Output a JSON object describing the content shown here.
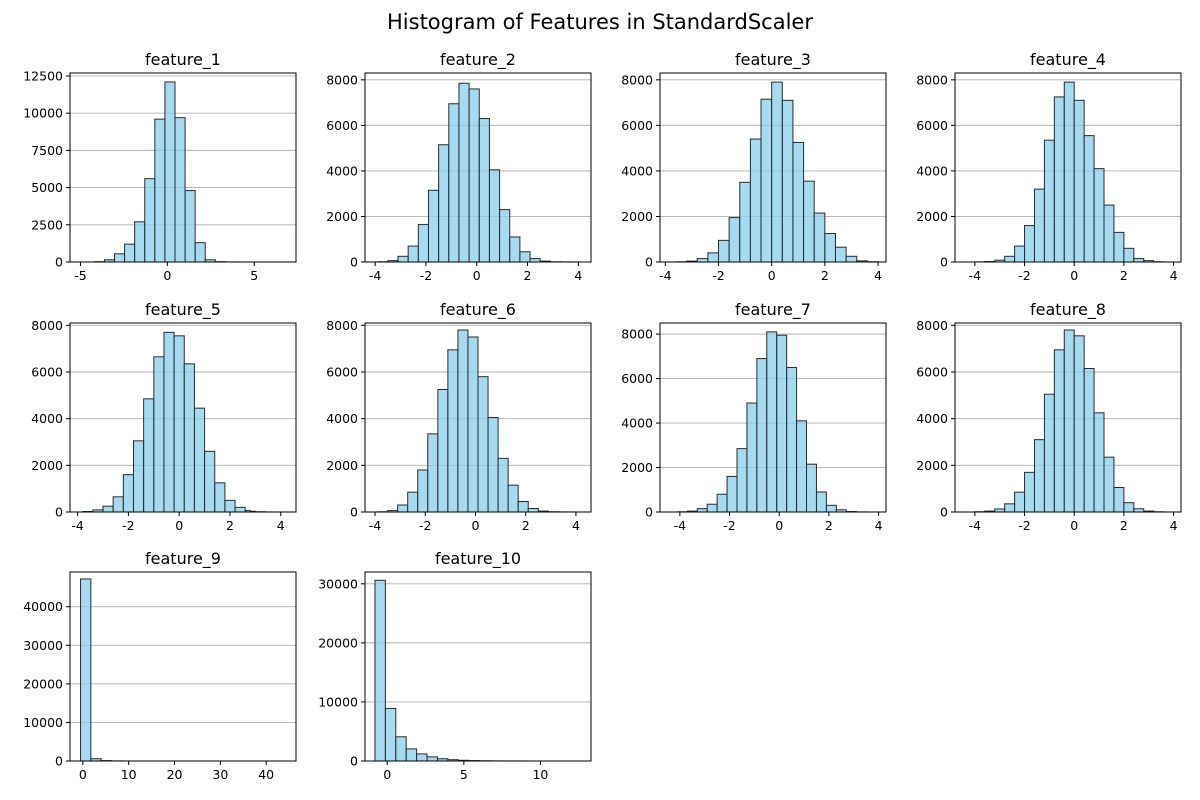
{
  "title": "Histogram of Features in StandardScaler",
  "style": {
    "bar_fill": "#87ceeb",
    "bar_edge": "#2b2b2b",
    "grid": "#b0b0b0"
  },
  "chart_data": [
    {
      "type": "bar",
      "title": "feature_1",
      "xlim": [
        -5.6,
        7.4
      ],
      "ylim": [
        0,
        12700
      ],
      "xticks": [
        -5,
        0,
        5
      ],
      "yticks": [
        0,
        2500,
        5000,
        7500,
        10000,
        12500
      ],
      "bin_edges": [
        -4.2,
        -3.62,
        -3.04,
        -2.46,
        -1.88,
        -1.3,
        -0.72,
        -0.14,
        0.44,
        1.02,
        1.6,
        2.18,
        2.76,
        3.34,
        3.92,
        4.5,
        5.08,
        5.66,
        6.24,
        6.82,
        7.4
      ],
      "counts": [
        20,
        150,
        550,
        1200,
        2700,
        5600,
        9600,
        12100,
        9700,
        4800,
        1300,
        150,
        20,
        5,
        2,
        1,
        1,
        0,
        0,
        1
      ],
      "grid": "y"
    },
    {
      "type": "bar",
      "title": "feature_2",
      "xlim": [
        -4.4,
        4.5
      ],
      "ylim": [
        0,
        8300
      ],
      "xticks": [
        -4,
        -2,
        0,
        2,
        4
      ],
      "yticks": [
        0,
        2000,
        4000,
        6000,
        8000
      ],
      "bin_edges": [
        -3.9,
        -3.5,
        -3.1,
        -2.7,
        -2.3,
        -1.9,
        -1.5,
        -1.1,
        -0.7,
        -0.3,
        0.1,
        0.5,
        0.9,
        1.3,
        1.7,
        2.1,
        2.5,
        2.9,
        3.3,
        3.7,
        4.1
      ],
      "counts": [
        10,
        60,
        250,
        700,
        1650,
        3150,
        5150,
        6950,
        7850,
        7600,
        6300,
        4050,
        2300,
        1100,
        450,
        150,
        40,
        10,
        5,
        2
      ],
      "grid": "y"
    },
    {
      "type": "bar",
      "title": "feature_3",
      "xlim": [
        -4.2,
        4.3
      ],
      "ylim": [
        0,
        8300
      ],
      "xticks": [
        -4,
        -2,
        0,
        2,
        4
      ],
      "yticks": [
        0,
        2000,
        4000,
        6000,
        8000
      ],
      "bin_edges": [
        -4.0,
        -3.6,
        -3.2,
        -2.8,
        -2.4,
        -2.0,
        -1.6,
        -1.2,
        -0.8,
        -0.4,
        0.0,
        0.4,
        0.8,
        1.2,
        1.6,
        2.0,
        2.4,
        2.8,
        3.2,
        3.6,
        4.0
      ],
      "counts": [
        2,
        10,
        40,
        150,
        400,
        950,
        1950,
        3500,
        5400,
        7150,
        7900,
        7100,
        5250,
        3550,
        2150,
        1250,
        650,
        250,
        50,
        10
      ],
      "grid": "y"
    },
    {
      "type": "bar",
      "title": "feature_4",
      "xlim": [
        -4.8,
        4.3
      ],
      "ylim": [
        0,
        8300
      ],
      "xticks": [
        -4,
        -2,
        0,
        2,
        4
      ],
      "yticks": [
        0,
        2000,
        4000,
        6000,
        8000
      ],
      "bin_edges": [
        -4.0,
        -3.6,
        -3.2,
        -2.8,
        -2.4,
        -2.0,
        -1.6,
        -1.2,
        -0.8,
        -0.4,
        0.0,
        0.4,
        0.8,
        1.2,
        1.6,
        2.0,
        2.4,
        2.8,
        3.2,
        3.6,
        4.0
      ],
      "counts": [
        5,
        20,
        80,
        250,
        700,
        1600,
        3200,
        5350,
        7250,
        7900,
        7100,
        5550,
        4100,
        2500,
        1300,
        600,
        150,
        60,
        10,
        2
      ],
      "grid": "y"
    },
    {
      "type": "bar",
      "title": "feature_5",
      "xlim": [
        -4.3,
        4.6
      ],
      "ylim": [
        0,
        8100
      ],
      "xticks": [
        -4,
        -2,
        0,
        2,
        4
      ],
      "yticks": [
        0,
        2000,
        4000,
        6000,
        8000
      ],
      "bin_edges": [
        -3.8,
        -3.4,
        -3.0,
        -2.6,
        -2.2,
        -1.8,
        -1.4,
        -1.0,
        -0.6,
        -0.2,
        0.2,
        0.6,
        1.0,
        1.4,
        1.8,
        2.2,
        2.6,
        2.8,
        3.0,
        3.4,
        3.8
      ],
      "counts": [
        20,
        90,
        250,
        650,
        1600,
        3050,
        4850,
        6650,
        7700,
        7550,
        6350,
        4450,
        2600,
        1250,
        500,
        200,
        60,
        30,
        10,
        2
      ],
      "grid": "y"
    },
    {
      "type": "bar",
      "title": "feature_6",
      "xlim": [
        -4.4,
        4.6
      ],
      "ylim": [
        0,
        8100
      ],
      "xticks": [
        -4,
        -2,
        0,
        2,
        4
      ],
      "yticks": [
        0,
        2000,
        4000,
        6000,
        8000
      ],
      "bin_edges": [
        -3.9,
        -3.5,
        -3.1,
        -2.7,
        -2.3,
        -1.9,
        -1.5,
        -1.1,
        -0.7,
        -0.3,
        0.1,
        0.5,
        0.9,
        1.3,
        1.7,
        2.1,
        2.5,
        2.9,
        3.3,
        3.7,
        4.1
      ],
      "counts": [
        10,
        60,
        300,
        850,
        1800,
        3350,
        5250,
        6950,
        7800,
        7500,
        5800,
        4050,
        2300,
        1150,
        450,
        150,
        40,
        10,
        5,
        2
      ],
      "grid": "y"
    },
    {
      "type": "bar",
      "title": "feature_7",
      "xlim": [
        -4.8,
        4.3
      ],
      "ylim": [
        0,
        8500
      ],
      "xticks": [
        -4,
        -2,
        0,
        2,
        4
      ],
      "yticks": [
        0,
        2000,
        4000,
        6000,
        8000
      ],
      "bin_edges": [
        -4.1,
        -3.7,
        -3.3,
        -2.9,
        -2.5,
        -2.1,
        -1.7,
        -1.3,
        -0.9,
        -0.5,
        -0.1,
        0.3,
        0.7,
        1.1,
        1.5,
        1.9,
        2.3,
        2.7,
        3.1,
        3.5,
        3.9
      ],
      "counts": [
        10,
        40,
        150,
        350,
        800,
        1600,
        2850,
        4900,
        6900,
        8100,
        7950,
        6500,
        4100,
        2150,
        900,
        300,
        100,
        20,
        5,
        2
      ],
      "grid": "y"
    },
    {
      "type": "bar",
      "title": "feature_8",
      "xlim": [
        -4.8,
        4.3
      ],
      "ylim": [
        0,
        8100
      ],
      "xticks": [
        -4,
        -2,
        0,
        2,
        4
      ],
      "yticks": [
        0,
        2000,
        4000,
        6000,
        8000
      ],
      "bin_edges": [
        -4.0,
        -3.6,
        -3.2,
        -2.8,
        -2.4,
        -2.0,
        -1.6,
        -1.2,
        -0.8,
        -0.4,
        0.0,
        0.4,
        0.8,
        1.2,
        1.6,
        2.0,
        2.4,
        2.8,
        3.2,
        3.6,
        4.0
      ],
      "counts": [
        10,
        40,
        130,
        350,
        850,
        1700,
        3100,
        5050,
        6950,
        7800,
        7550,
        6150,
        4250,
        2350,
        1050,
        400,
        140,
        40,
        10,
        2
      ],
      "grid": "y"
    },
    {
      "type": "bar",
      "title": "feature_9",
      "xlim": [
        -2.8,
        46.5
      ],
      "ylim": [
        0,
        49000
      ],
      "xticks": [
        0,
        10,
        20,
        30,
        40
      ],
      "yticks": [
        0,
        10000,
        20000,
        30000,
        40000
      ],
      "bin_edges": [
        -0.5,
        1.75,
        4.0,
        6.25,
        8.5,
        10.75,
        13.0,
        15.25,
        17.5,
        19.75,
        22.0,
        24.25,
        26.5,
        28.75,
        31.0,
        33.25,
        35.5,
        37.75,
        40.0,
        42.25,
        44.5
      ],
      "counts": [
        47200,
        600,
        100,
        30,
        15,
        10,
        5,
        3,
        2,
        1,
        1,
        1,
        0,
        0,
        1,
        0,
        0,
        0,
        0,
        1
      ],
      "grid": "y"
    },
    {
      "type": "bar",
      "title": "feature_10",
      "xlim": [
        -1.45,
        13.3
      ],
      "ylim": [
        0,
        32000
      ],
      "xticks": [
        0,
        5,
        10
      ],
      "yticks": [
        0,
        10000,
        20000,
        30000
      ],
      "bin_edges": [
        -0.8,
        -0.12,
        0.56,
        1.24,
        1.92,
        2.6,
        3.28,
        3.96,
        4.64,
        5.32,
        6.0,
        6.68,
        7.36,
        8.04,
        8.72,
        9.4,
        10.08,
        10.76,
        11.44,
        12.12,
        12.8
      ],
      "counts": [
        30600,
        8900,
        4100,
        2050,
        1200,
        700,
        380,
        220,
        120,
        70,
        40,
        25,
        15,
        10,
        5,
        3,
        2,
        1,
        1,
        1
      ],
      "grid": "y"
    }
  ]
}
